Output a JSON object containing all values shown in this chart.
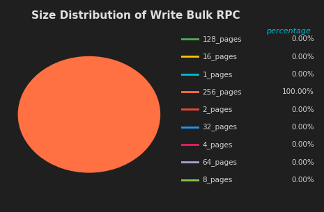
{
  "title": "Size Distribution of Write Bulk RPC",
  "background_color": "#1f1f1f",
  "title_color": "#e0e0e0",
  "title_fontsize": 11,
  "legend_header": "percentage",
  "legend_header_color": "#00bcd4",
  "legend_labels": [
    "128_pages",
    "16_pages",
    "1_pages",
    "256_pages",
    "2_pages",
    "32_pages",
    "4_pages",
    "64_pages",
    "8_pages"
  ],
  "legend_colors": [
    "#4caf50",
    "#ffc107",
    "#00bcd4",
    "#ff7043",
    "#f44336",
    "#2196f3",
    "#e91e63",
    "#b39ddb",
    "#8bc34a"
  ],
  "legend_values": [
    "0.00%",
    "0.00%",
    "0.00%",
    "100.00%",
    "0.00%",
    "0.00%",
    "0.00%",
    "0.00%",
    "0.00%"
  ],
  "pie_values": [
    1e-05,
    1e-05,
    1e-05,
    100.0,
    1e-05,
    1e-05,
    1e-05,
    1e-05,
    1e-05
  ],
  "pie_colors": [
    "#4caf50",
    "#ffc107",
    "#00bcd4",
    "#ff7043",
    "#f44336",
    "#2196f3",
    "#e91e63",
    "#b39ddb",
    "#8bc34a"
  ],
  "text_color": "#d0d0d0",
  "legend_text_fontsize": 7.5
}
